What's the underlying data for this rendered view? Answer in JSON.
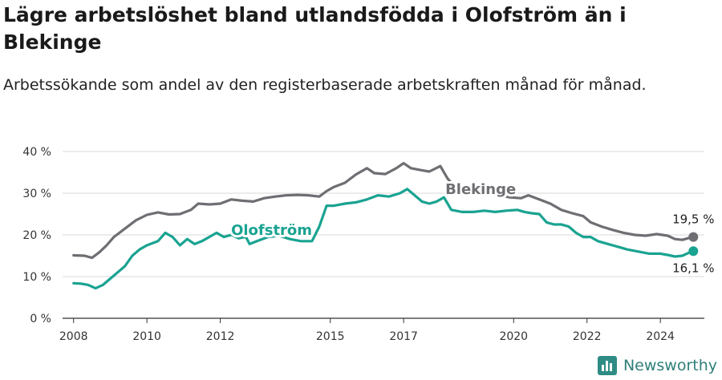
{
  "title": "Lägre arbetslöshet bland utlandsfödda i Olofström än i Blekinge",
  "subtitle": "Arbetssökande som andel av den registerbaserade arbetskraften månad för månad.",
  "brand": "Newsworthy",
  "chart_data": {
    "type": "line",
    "x_unit": "year",
    "xlim": [
      2007.7,
      2025.2
    ],
    "ylim": [
      0,
      40
    ],
    "y_ticks": [
      "0 %",
      "10 %",
      "20 %",
      "30 %",
      "40 %"
    ],
    "x_ticks": [
      "2008",
      "2010",
      "2012",
      "2015",
      "2017",
      "2020",
      "2022",
      "2024"
    ],
    "grid": true,
    "series": [
      {
        "name": "Blekinge",
        "color": "#6e6e73",
        "end_label": "19,5 %",
        "points": [
          [
            2008.0,
            15.1
          ],
          [
            2008.3,
            15.0
          ],
          [
            2008.5,
            14.5
          ],
          [
            2008.7,
            15.8
          ],
          [
            2008.9,
            17.5
          ],
          [
            2009.1,
            19.5
          ],
          [
            2009.4,
            21.5
          ],
          [
            2009.7,
            23.5
          ],
          [
            2010.0,
            24.8
          ],
          [
            2010.3,
            25.4
          ],
          [
            2010.6,
            24.9
          ],
          [
            2010.9,
            25.0
          ],
          [
            2011.2,
            26.0
          ],
          [
            2011.4,
            27.5
          ],
          [
            2011.7,
            27.3
          ],
          [
            2012.0,
            27.5
          ],
          [
            2012.3,
            28.5
          ],
          [
            2012.6,
            28.2
          ],
          [
            2012.9,
            28.0
          ],
          [
            2013.2,
            28.8
          ],
          [
            2013.5,
            29.2
          ],
          [
            2013.8,
            29.5
          ],
          [
            2014.1,
            29.6
          ],
          [
            2014.4,
            29.5
          ],
          [
            2014.7,
            29.2
          ],
          [
            2014.9,
            30.5
          ],
          [
            2015.1,
            31.5
          ],
          [
            2015.4,
            32.5
          ],
          [
            2015.7,
            34.5
          ],
          [
            2016.0,
            36.0
          ],
          [
            2016.2,
            34.8
          ],
          [
            2016.5,
            34.6
          ],
          [
            2016.8,
            36.0
          ],
          [
            2017.0,
            37.2
          ],
          [
            2017.2,
            36.0
          ],
          [
            2017.5,
            35.5
          ],
          [
            2017.7,
            35.2
          ],
          [
            2018.0,
            36.5
          ],
          [
            2018.2,
            33.5
          ],
          [
            2018.4,
            31.5
          ],
          [
            2018.7,
            31.0
          ],
          [
            2019.0,
            30.5
          ],
          [
            2019.3,
            30.0
          ],
          [
            2019.6,
            29.5
          ],
          [
            2019.9,
            29.0
          ],
          [
            2020.2,
            28.8
          ],
          [
            2020.4,
            29.5
          ],
          [
            2020.7,
            28.5
          ],
          [
            2021.0,
            27.5
          ],
          [
            2021.3,
            26.0
          ],
          [
            2021.6,
            25.2
          ],
          [
            2021.9,
            24.5
          ],
          [
            2022.1,
            23.0
          ],
          [
            2022.4,
            22.0
          ],
          [
            2022.7,
            21.2
          ],
          [
            2023.0,
            20.5
          ],
          [
            2023.3,
            20.0
          ],
          [
            2023.6,
            19.8
          ],
          [
            2023.9,
            20.2
          ],
          [
            2024.2,
            19.8
          ],
          [
            2024.4,
            19.0
          ],
          [
            2024.6,
            18.8
          ],
          [
            2024.8,
            19.3
          ],
          [
            2024.9,
            19.5
          ]
        ]
      },
      {
        "name": "Olofström",
        "color": "#1aa391",
        "end_label": "16,1 %",
        "points": [
          [
            2008.0,
            8.4
          ],
          [
            2008.2,
            8.3
          ],
          [
            2008.4,
            8.0
          ],
          [
            2008.6,
            7.2
          ],
          [
            2008.8,
            8.0
          ],
          [
            2009.0,
            9.5
          ],
          [
            2009.2,
            11.0
          ],
          [
            2009.4,
            12.5
          ],
          [
            2009.6,
            15.0
          ],
          [
            2009.8,
            16.5
          ],
          [
            2010.0,
            17.5
          ],
          [
            2010.3,
            18.5
          ],
          [
            2010.5,
            20.5
          ],
          [
            2010.7,
            19.5
          ],
          [
            2010.9,
            17.5
          ],
          [
            2011.1,
            19.0
          ],
          [
            2011.3,
            17.8
          ],
          [
            2011.5,
            18.5
          ],
          [
            2011.7,
            19.5
          ],
          [
            2011.9,
            20.5
          ],
          [
            2012.1,
            19.5
          ],
          [
            2012.3,
            20.0
          ],
          [
            2012.5,
            19.2
          ],
          [
            2012.7,
            19.5
          ],
          [
            2012.8,
            17.8
          ],
          [
            2013.0,
            18.5
          ],
          [
            2013.3,
            19.5
          ],
          [
            2013.6,
            19.8
          ],
          [
            2013.9,
            19.0
          ],
          [
            2014.2,
            18.5
          ],
          [
            2014.5,
            18.5
          ],
          [
            2014.7,
            22.0
          ],
          [
            2014.9,
            27.0
          ],
          [
            2015.1,
            27.0
          ],
          [
            2015.4,
            27.5
          ],
          [
            2015.7,
            27.8
          ],
          [
            2016.0,
            28.5
          ],
          [
            2016.3,
            29.5
          ],
          [
            2016.6,
            29.2
          ],
          [
            2016.9,
            30.0
          ],
          [
            2017.1,
            31.0
          ],
          [
            2017.3,
            29.5
          ],
          [
            2017.5,
            28.0
          ],
          [
            2017.7,
            27.5
          ],
          [
            2017.9,
            28.0
          ],
          [
            2018.1,
            29.0
          ],
          [
            2018.3,
            26.0
          ],
          [
            2018.6,
            25.5
          ],
          [
            2018.9,
            25.5
          ],
          [
            2019.2,
            25.8
          ],
          [
            2019.5,
            25.5
          ],
          [
            2019.8,
            25.8
          ],
          [
            2020.1,
            26.0
          ],
          [
            2020.3,
            25.5
          ],
          [
            2020.5,
            25.2
          ],
          [
            2020.7,
            25.0
          ],
          [
            2020.9,
            23.0
          ],
          [
            2021.1,
            22.5
          ],
          [
            2021.3,
            22.5
          ],
          [
            2021.5,
            22.0
          ],
          [
            2021.7,
            20.5
          ],
          [
            2021.9,
            19.5
          ],
          [
            2022.1,
            19.5
          ],
          [
            2022.3,
            18.5
          ],
          [
            2022.5,
            18.0
          ],
          [
            2022.7,
            17.5
          ],
          [
            2022.9,
            17.0
          ],
          [
            2023.1,
            16.5
          ],
          [
            2023.4,
            16.0
          ],
          [
            2023.7,
            15.5
          ],
          [
            2024.0,
            15.5
          ],
          [
            2024.2,
            15.2
          ],
          [
            2024.4,
            14.8
          ],
          [
            2024.6,
            15.0
          ],
          [
            2024.8,
            15.8
          ],
          [
            2024.9,
            16.1
          ]
        ]
      }
    ]
  }
}
